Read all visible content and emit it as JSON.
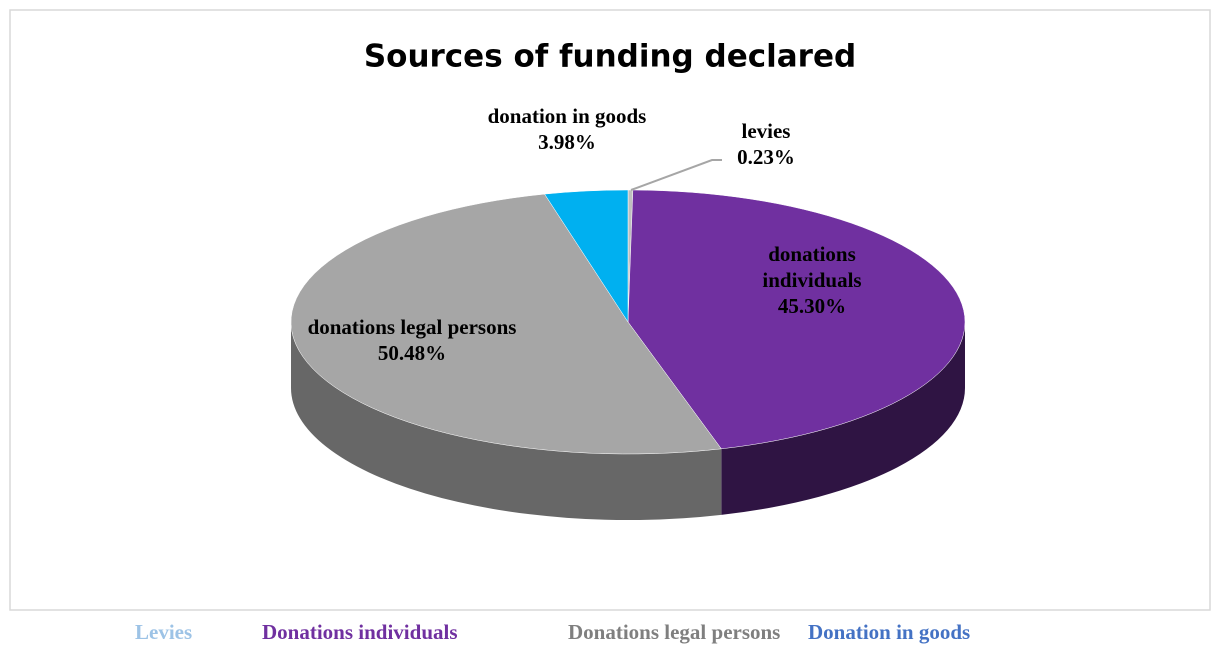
{
  "chart_data": {
    "type": "pie",
    "title": "Sources of funding declared",
    "categories": [
      "levies",
      "donations individuals",
      "donations legal persons",
      "donation in goods"
    ],
    "values": [
      0.23,
      45.3,
      50.48,
      3.98
    ],
    "value_labels": [
      "0.23%",
      "45.30%",
      "50.48%",
      "3.98%"
    ],
    "colors": [
      "#bfbfbf",
      "#7030a0",
      "#a6a6a6",
      "#00b0f0"
    ],
    "legend": [
      {
        "name": "Levies",
        "color": "#9dc3e6"
      },
      {
        "name": "Donations individuals",
        "color": "#7030a0"
      },
      {
        "name": "Donations legal persons",
        "color": "#7f7f7f"
      },
      {
        "name": "Donation in goods",
        "color": "#4472c4"
      }
    ]
  }
}
